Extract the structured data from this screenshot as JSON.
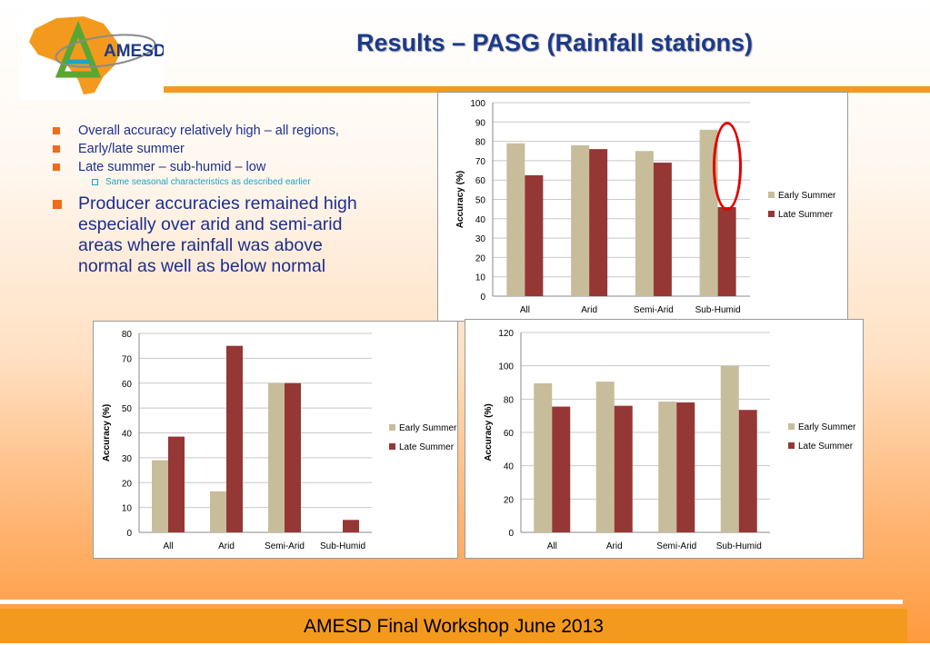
{
  "header": {
    "logo_text": "AMESD",
    "title": "Results – PASG (Rainfall stations)"
  },
  "bullets": {
    "items": [
      "Overall accuracy relatively high – all regions,",
      "Early/late summer",
      "Late summer – sub-humid – low"
    ],
    "sub_item": "Same seasonal characteristics as described earlier",
    "main_item": "Producer accuracies remained high especially over arid and semi-arid areas where rainfall was above normal as well as below normal"
  },
  "footer": {
    "text": "AMESD Final Workshop June 2013"
  },
  "colors": {
    "early": "#c8bd9a",
    "late": "#953735",
    "accent": "#f39a1e",
    "title": "#1c3a8a"
  },
  "chart_data": [
    {
      "type": "bar",
      "categories": [
        "All",
        "Arid",
        "Semi-Arid",
        "Sub-Humid"
      ],
      "series": [
        {
          "name": "Early Summer",
          "values": [
            79,
            78,
            75,
            86
          ]
        },
        {
          "name": "Late Summer",
          "values": [
            62.5,
            76,
            69,
            46
          ]
        }
      ],
      "ylabel": "Accuracy (%)",
      "ylim": [
        0,
        100
      ],
      "yticks": [
        0,
        10,
        20,
        30,
        40,
        50,
        60,
        70,
        80,
        90,
        100
      ],
      "grid": true,
      "legend": "right",
      "annotation": "red ellipse around Sub-Humid Early Summer bar"
    },
    {
      "type": "bar",
      "categories": [
        "All",
        "Arid",
        "Semi-Arid",
        "Sub-Humid"
      ],
      "series": [
        {
          "name": "Early Summer",
          "values": [
            29,
            16.5,
            60,
            0
          ]
        },
        {
          "name": "Late Summer",
          "values": [
            38.5,
            75,
            60,
            5
          ]
        }
      ],
      "ylabel": "Accuracy (%)",
      "ylim": [
        0,
        80
      ],
      "yticks": [
        0,
        10,
        20,
        30,
        40,
        50,
        60,
        70,
        80
      ],
      "grid": true,
      "legend": "right"
    },
    {
      "type": "bar",
      "categories": [
        "All",
        "Arid",
        "Semi-Arid",
        "Sub-Humid"
      ],
      "series": [
        {
          "name": "Early Summer",
          "values": [
            89.5,
            90.5,
            78.5,
            100
          ]
        },
        {
          "name": "Late Summer",
          "values": [
            75.5,
            76,
            78,
            73.5
          ]
        }
      ],
      "ylabel": "Accuracy (%)",
      "ylim": [
        0,
        120
      ],
      "yticks": [
        0,
        20,
        40,
        60,
        80,
        100,
        120
      ],
      "grid": true,
      "legend": "right"
    }
  ]
}
